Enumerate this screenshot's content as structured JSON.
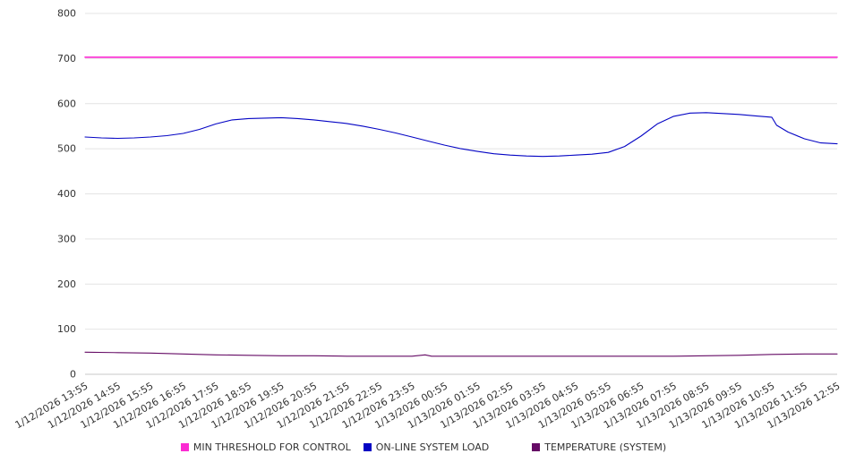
{
  "chart_data": {
    "type": "line",
    "title": "",
    "xlabel": "",
    "ylabel": "",
    "ylim": [
      0,
      800
    ],
    "y_ticks": [
      0,
      100,
      200,
      300,
      400,
      500,
      600,
      700,
      800
    ],
    "grid": "horizontal",
    "legend_position": "bottom",
    "axis_text_color": "#333333",
    "grid_color": "#e4e4e4",
    "axis_line_color": "#c8c8c8",
    "x_tick_labels": [
      "1/12/2026 13:55",
      "1/12/2026 14:55",
      "1/12/2026 15:55",
      "1/12/2026 16:55",
      "1/12/2026 17:55",
      "1/12/2026 18:55",
      "1/12/2026 19:55",
      "1/12/2026 20:55",
      "1/12/2026 21:55",
      "1/12/2026 22:55",
      "1/12/2026 23:55",
      "1/13/2026 00:55",
      "1/13/2026 01:55",
      "1/13/2026 02:55",
      "1/13/2026 03:55",
      "1/13/2026 04:55",
      "1/13/2026 05:55",
      "1/13/2026 06:55",
      "1/13/2026 07:55",
      "1/13/2026 08:55",
      "1/13/2026 09:55",
      "1/13/2026 10:55",
      "1/13/2026 11:55",
      "1/13/2026 12:55"
    ],
    "series": [
      {
        "name": "MIN THRESHOLD FOR CONTROL",
        "color": "#fb2bd2",
        "stroke_width": 1.6,
        "x": [
          0,
          23
        ],
        "values": [
          703,
          703
        ]
      },
      {
        "name": "ON-LINE SYSTEM LOAD",
        "color": "#0404c4",
        "stroke_width": 1.1,
        "x": [
          0,
          0.5,
          1,
          1.5,
          2,
          2.5,
          3,
          3.5,
          4,
          4.5,
          5,
          5.5,
          6,
          6.5,
          7,
          7.5,
          8,
          8.5,
          9,
          9.5,
          10,
          10.5,
          11,
          11.5,
          12,
          12.5,
          13,
          13.5,
          14,
          14.5,
          15,
          15.5,
          16,
          16.5,
          17,
          17.5,
          18,
          18.5,
          19,
          19.5,
          20,
          20.5,
          21,
          21.15,
          21.5,
          22,
          22.5,
          23
        ],
        "values": [
          526,
          524,
          523,
          524,
          526,
          529,
          534,
          543,
          555,
          564,
          567,
          568,
          569,
          567,
          564,
          560,
          556,
          550,
          543,
          535,
          526,
          517,
          508,
          500,
          494,
          489,
          486,
          484,
          483,
          484,
          486,
          488,
          492,
          505,
          528,
          555,
          572,
          579,
          580,
          578,
          576,
          573,
          570,
          552,
          537,
          522,
          513,
          511
        ]
      },
      {
        "name": "TEMPERATURE (SYSTEM)",
        "color": "#650b65",
        "stroke_width": 1.1,
        "x": [
          0,
          1,
          2,
          3,
          4,
          5,
          6,
          7,
          8,
          9,
          10,
          10.4,
          10.6,
          11,
          12,
          13,
          14,
          15,
          16,
          17,
          18,
          19,
          20,
          21,
          22,
          23
        ],
        "values": [
          49,
          48,
          47,
          45,
          43,
          42,
          41,
          41,
          40,
          40,
          40,
          43,
          40,
          40,
          40,
          40,
          40,
          40,
          40,
          40,
          40,
          41,
          42,
          44,
          45,
          45
        ]
      }
    ]
  }
}
